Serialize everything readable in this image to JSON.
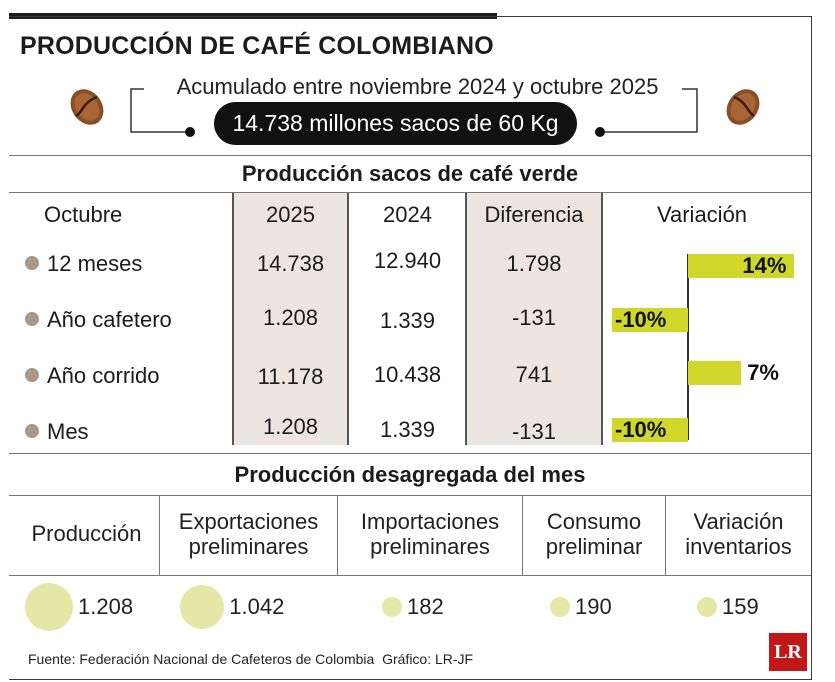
{
  "header": {
    "title": "PRODUCCIÓN DE CAFÉ COLOMBIANO",
    "subtitle": "Acumulado entre noviembre 2024 y octubre 2025",
    "total": "14.738 millones sacos de 60 Kg"
  },
  "section1": {
    "title": "Producción  sacos de café verde"
  },
  "table": {
    "columns": [
      "Octubre",
      "2025",
      "2024",
      "Diferencia",
      "Variación"
    ],
    "rows": [
      {
        "label": "12 meses",
        "v2025": "14.738",
        "v2024": "12.940",
        "diff": "1.798",
        "variation": "14%"
      },
      {
        "label": "Año cafetero",
        "v2025": "1.208",
        "v2024": "1.339",
        "diff": "-131",
        "variation": "-10%"
      },
      {
        "label": "Año corrido",
        "v2025": "11.178",
        "v2024": "10.438",
        "diff": "741",
        "variation": "7%"
      },
      {
        "label": "Mes",
        "v2025": "1.208",
        "v2024": "1.339",
        "diff": "-131",
        "variation": "-10%"
      }
    ]
  },
  "section2": {
    "title": "Producción desagregada del mes"
  },
  "breakdown": [
    {
      "label_line1": "Producción",
      "label_line2": "",
      "value": "1.208"
    },
    {
      "label_line1": "Exportaciones",
      "label_line2": "preliminares",
      "value": "1.042"
    },
    {
      "label_line1": "Importaciones",
      "label_line2": "preliminares",
      "value": "182"
    },
    {
      "label_line1": "Consumo",
      "label_line2": "preliminar",
      "value": "190"
    },
    {
      "label_line1": "Variación",
      "label_line2": "inventarios",
      "value": "159"
    }
  ],
  "footer": {
    "source": "Fuente: Federación Nacional de Cafeteros de Colombia",
    "credit": "Gráfico: LR-JF",
    "logo": "LR"
  },
  "colors": {
    "bar": "#cfd82a",
    "bubble": "#e5e7a6",
    "dot": "#a89884",
    "shade": "#ece6e2",
    "pill": "#111111",
    "logo": "#c01818"
  },
  "icons": [
    "coffee-bean-icon"
  ],
  "chart_data": [
    {
      "type": "bar",
      "categories": [
        "12 meses",
        "Año cafetero",
        "Año corrido",
        "Mes"
      ],
      "values": [
        14,
        -10,
        7,
        -10
      ],
      "title": "",
      "xlabel": "",
      "ylabel": "Variación",
      "unit": "%"
    },
    {
      "type": "scatter",
      "categories": [
        "Producción",
        "Exportaciones preliminares",
        "Importaciones preliminares",
        "Consumo preliminar",
        "Variación inventarios"
      ],
      "values": [
        1208,
        1042,
        182,
        190,
        159
      ],
      "title": "Producción desagregada del mes"
    }
  ]
}
